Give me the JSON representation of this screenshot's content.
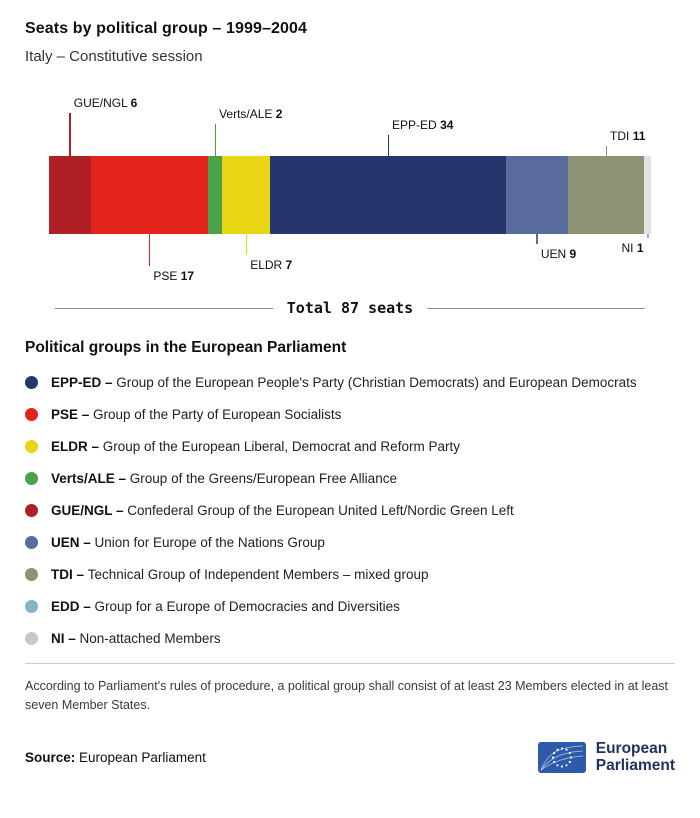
{
  "header": {
    "title": "Seats by political group – 1999–2004",
    "subtitle": "Italy – Constitutive session"
  },
  "chart_data": {
    "type": "bar",
    "variant": "stacked-horizontal",
    "title": "Seats by political group – 1999–2004",
    "subtitle": "Italy – Constitutive session",
    "total_seats": 87,
    "total_label": "Total 87 seats",
    "segments": [
      {
        "code": "GUE/NGL",
        "seats": 6,
        "color": "#b01f24",
        "label_side": "top",
        "tier": 3
      },
      {
        "code": "PSE",
        "seats": 17,
        "color": "#e2241d",
        "label_side": "bottom",
        "tier": 2
      },
      {
        "code": "Verts/ALE",
        "seats": 2,
        "color": "#4aa147",
        "label_side": "top",
        "tier": 2
      },
      {
        "code": "ELDR",
        "seats": 7,
        "color": "#e8d514",
        "label_side": "bottom",
        "tier": 1
      },
      {
        "code": "EPP-ED",
        "seats": 34,
        "color": "#26366d",
        "label_side": "top",
        "tier": 1
      },
      {
        "code": "UEN",
        "seats": 9,
        "color": "#5a6b9d",
        "label_side": "bottom",
        "tier": 0
      },
      {
        "code": "TDI",
        "seats": 11,
        "color": "#8e9274",
        "label_side": "top",
        "tier": 0
      },
      {
        "code": "NI",
        "seats": 1,
        "color": "#e3e3e3",
        "label_side": "bottom",
        "tier": -1,
        "align": "right",
        "line_color": "#aaaaaa"
      }
    ]
  },
  "legend": {
    "heading": "Political groups in the European Parliament",
    "items": [
      {
        "abbr": "EPP-ED",
        "color": "#26366d",
        "desc": "Group of the European People's Party (Christian Democrats) and European Democrats"
      },
      {
        "abbr": "PSE",
        "color": "#e2241d",
        "desc": "Group of the Party of European Socialists"
      },
      {
        "abbr": "ELDR",
        "color": "#e8d514",
        "desc": "Group of the European Liberal, Democrat and Reform Party"
      },
      {
        "abbr": "Verts/ALE",
        "color": "#4aa147",
        "desc": "Group of the Greens/European Free Alliance"
      },
      {
        "abbr": "GUE/NGL",
        "color": "#b01f24",
        "desc": "Confederal Group of the European United Left/Nordic Green Left"
      },
      {
        "abbr": "UEN",
        "color": "#5a6b9d",
        "desc": "Union for Europe of the Nations Group"
      },
      {
        "abbr": "TDI",
        "color": "#8e9274",
        "desc": "Technical Group of Independent Members – mixed group"
      },
      {
        "abbr": "EDD",
        "color": "#85b2c4",
        "desc": "Group for a Europe of Democracies and Diversities"
      },
      {
        "abbr": "NI",
        "color": "#c8c8c8",
        "desc": "Non-attached Members"
      }
    ]
  },
  "footnote": "According to Parliament's rules of procedure, a political group shall consist of at least 23 Members elected in at least seven Member States.",
  "source": {
    "label": "Source:",
    "value": "European Parliament"
  },
  "logo": {
    "line1": "European",
    "line2": "Parliament"
  }
}
